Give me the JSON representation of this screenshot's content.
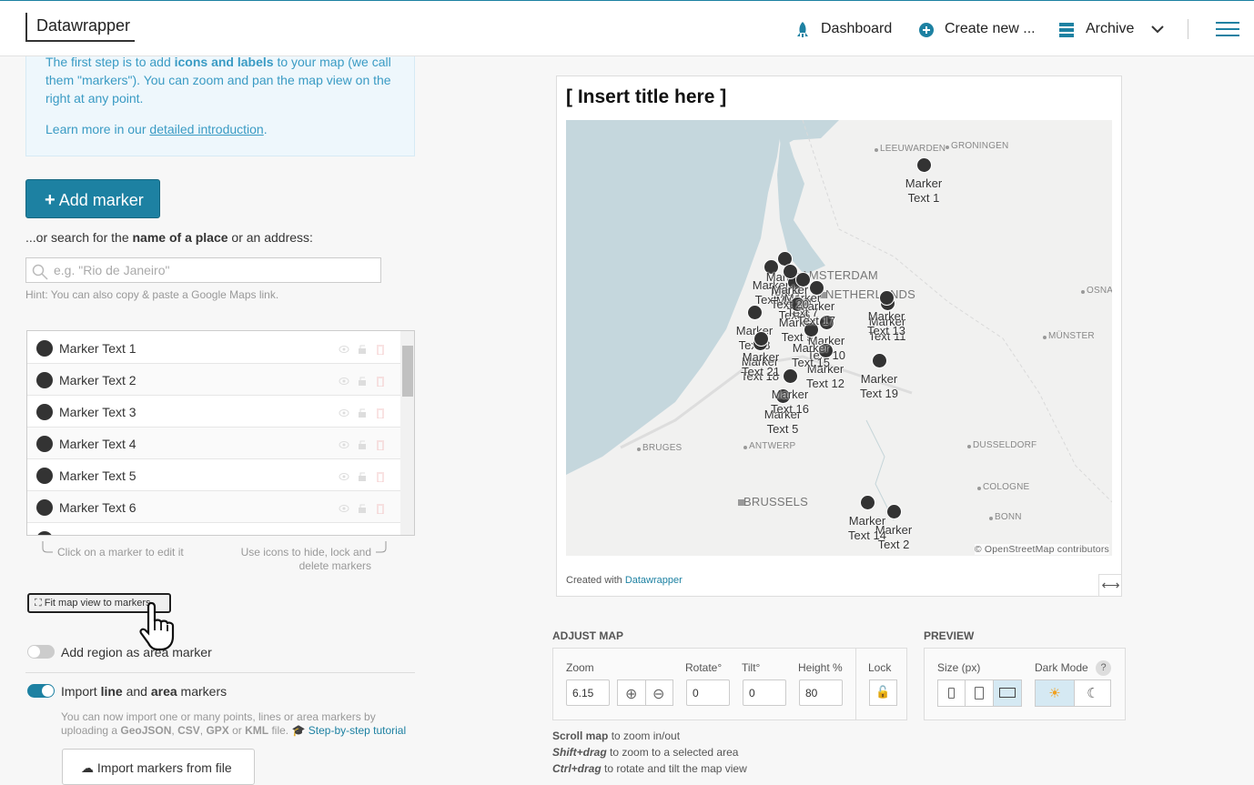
{
  "nav": {
    "brand": "Datawrapper",
    "items": [
      "Dashboard",
      "Create new ...",
      "Archive"
    ]
  },
  "intro": {
    "p1": [
      "The first step is to add ",
      "icons and labels",
      " to your map (we call them \"markers\"). You can zoom and pan the map view on the right at any point."
    ],
    "p2": [
      "Learn more in our ",
      "detailed introduction",
      "."
    ]
  },
  "add_marker": "Add marker",
  "search": {
    "label": [
      "...or search for the ",
      "name of a place",
      " or an address:"
    ],
    "placeholder": "e.g. \"Rio de Janeiro\"",
    "hint": "Hint: You can also copy & paste a Google Maps link."
  },
  "markers": [
    "Marker Text 1",
    "Marker Text 2",
    "Marker Text 3",
    "Marker Text 4",
    "Marker Text 5",
    "Marker Text 6",
    "Marker Text 7",
    "Marker Text 8",
    "Marker Text 9",
    "Marker Text 10",
    "Marker Text 11",
    "Marker Text 12",
    "Marker Text 13",
    "Marker Text 14",
    "Marker Text 15",
    "Marker Text 16",
    "Marker Text 17",
    "Marker Text 18",
    "Marker Text 19",
    "Marker Text 20",
    "Marker Text 21"
  ],
  "list_hints": [
    "Click on a marker to edit it",
    "Use icons to hide, lock and delete markers"
  ],
  "fit_button": "Fit map view to markers",
  "region_toggle": "Add region as area marker",
  "import_toggle": [
    "Import ",
    "line",
    " and ",
    "area",
    " markers"
  ],
  "import_desc": [
    "You can now import one or many points, lines or area markers by uploading a ",
    "GeoJSON",
    ", ",
    "CSV",
    ", ",
    "GPX",
    " or ",
    "KML",
    " file."
  ],
  "tutorial": "Step-by-step tutorial",
  "import_button": "Import markers from file",
  "chart": {
    "title": "[ Insert title here ]",
    "places": [
      "LEEUWARDEN",
      "GRONINGEN",
      "AMSTERDAM",
      "NETHERLANDS",
      "OSNA",
      "MÜNSTER",
      "BRUGES",
      "ANTWERP",
      "DUSSELDORF",
      "BRUSSELS",
      "COLOGNE",
      "BONN"
    ],
    "attribution": "© OpenStreetMap contributors",
    "credit": [
      "Created with ",
      "Datawrapper"
    ]
  },
  "adjust": {
    "heading": "ADJUST MAP",
    "zoom": {
      "label": "Zoom",
      "value": "6.15"
    },
    "rotate": {
      "label": "Rotate°",
      "value": "0"
    },
    "tilt": {
      "label": "Tilt°",
      "value": "0"
    },
    "height": {
      "label": "Height %",
      "value": "80"
    },
    "lock": "Lock"
  },
  "preview": {
    "heading": "PREVIEW",
    "size": "Size (px)",
    "dark_mode": "Dark Mode",
    "help": "?"
  },
  "instructions": [
    [
      "Scroll map",
      " to zoom in/out"
    ],
    [
      "Shift+drag",
      " to zoom to a selected area"
    ],
    [
      "Ctrl+drag",
      " to rotate and tilt the map view"
    ]
  ]
}
